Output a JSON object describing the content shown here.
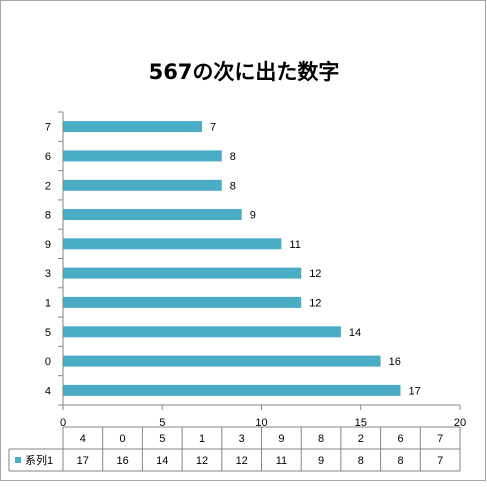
{
  "chart_data": {
    "type": "bar",
    "orientation": "horizontal",
    "title": "567の次に出た数字",
    "categories": [
      "4",
      "0",
      "5",
      "1",
      "3",
      "9",
      "8",
      "2",
      "6",
      "7"
    ],
    "series": [
      {
        "name": "系列1",
        "values": [
          17,
          16,
          14,
          12,
          12,
          11,
          9,
          8,
          8,
          7
        ],
        "color": "#4bacc6"
      }
    ],
    "xlim": [
      0,
      20
    ],
    "xticks": [
      0,
      5,
      10,
      15,
      20
    ],
    "grid": false,
    "data_labels": true,
    "data_table": true,
    "legend": "data-table"
  }
}
